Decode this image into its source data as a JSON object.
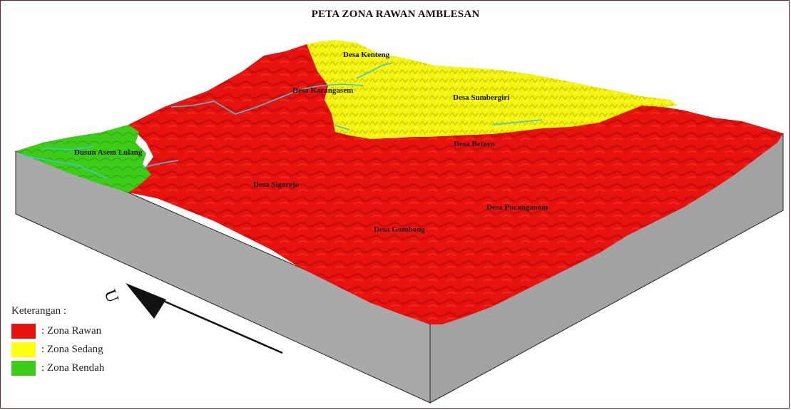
{
  "title": "PETA ZONA RAWAN AMBLESAN",
  "north_arrow": {
    "label": "U"
  },
  "villages": [
    {
      "name": "Desa Kenteng"
    },
    {
      "name": "Desa Karangasem"
    },
    {
      "name": "Desa Sumbergiri"
    },
    {
      "name": "Dusun Asem Lulang"
    },
    {
      "name": "Desa Betoyo"
    },
    {
      "name": "Desa Sigarejo"
    },
    {
      "name": "Desa Pucanganom"
    },
    {
      "name": "Desa Gombong"
    }
  ],
  "legend": {
    "heading": "Keterangan :",
    "items": [
      {
        "label": ": Zona Rawan",
        "color": "#e8120f"
      },
      {
        "label": ": Zona Sedang",
        "color": "#ffff11"
      },
      {
        "label": ": Zona Rendah",
        "color": "#3dcc18"
      }
    ]
  },
  "colors": {
    "frame": "#7a1f1f",
    "block_side": "#a9a9a9",
    "river": "#3cc6d6"
  }
}
